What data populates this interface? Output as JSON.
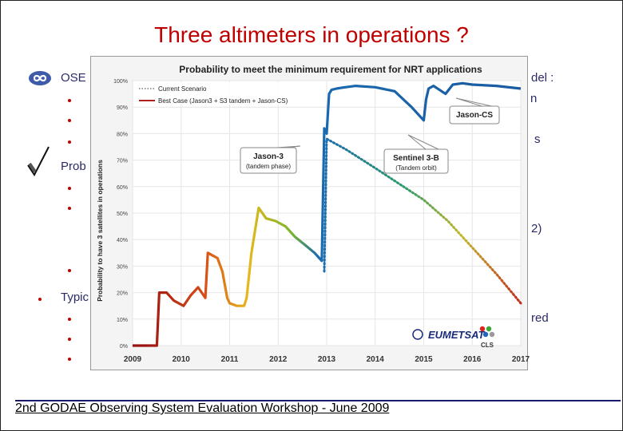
{
  "slide": {
    "title": "Three altimeters in operations ?",
    "footer": "2nd GODAE Observing System Evaluation Workshop - June 2009",
    "fragments": {
      "ose": "OSE",
      "prob": "Prob",
      "typic": "Typic",
      "del": "del :",
      "n": "n",
      "s": "s",
      "p2": "2)",
      "red": "red"
    }
  },
  "chart_data": {
    "type": "line",
    "title": "Probability to meet the minimum requirement for NRT applications",
    "ylabel": "Probability to have 3 satellites in operations",
    "ylim": [
      0,
      100
    ],
    "y_ticks": [
      "0%",
      "10%",
      "20%",
      "30%",
      "40%",
      "50%",
      "60%",
      "70%",
      "80%",
      "90%",
      "100%"
    ],
    "xlim": [
      2009,
      2017
    ],
    "x_ticks": [
      "2009",
      "2010",
      "2011",
      "2012",
      "2013",
      "2014",
      "2015",
      "2016",
      "2017"
    ],
    "legend": [
      "Current Scenario",
      "Best Case (Jason3 + S3 tandem + Jason-CS)"
    ],
    "series": [
      {
        "name": "Best Case (Jason3 + S3 tandem + Jason-CS)",
        "style": "solid",
        "x": [
          2009.0,
          2009.25,
          2009.5,
          2009.55,
          2009.7,
          2009.85,
          2010.05,
          2010.2,
          2010.35,
          2010.5,
          2010.55,
          2010.75,
          2010.85,
          2010.95,
          2011.0,
          2011.15,
          2011.3,
          2011.35,
          2011.45,
          2011.6,
          2011.75,
          2011.95,
          2012.15,
          2012.35,
          2012.55,
          2012.75,
          2012.9,
          2012.95,
          2013.0,
          2013.05,
          2013.1,
          2013.2,
          2013.35,
          2013.6,
          2014.0,
          2014.4,
          2014.75,
          2015.0,
          2015.05,
          2015.1,
          2015.2,
          2015.45,
          2015.6,
          2015.8,
          2016.0,
          2016.5,
          2017.0
        ],
        "values": [
          0,
          0,
          0,
          20,
          20,
          17,
          15,
          19,
          22,
          18,
          35,
          33,
          28,
          18,
          16,
          15,
          15,
          18,
          35,
          52,
          48,
          47,
          45,
          41,
          38,
          35,
          32,
          82,
          80,
          95,
          96.5,
          97,
          97.4,
          98,
          97.5,
          96,
          90,
          85,
          93,
          97,
          98,
          95,
          98.5,
          99,
          98.5,
          98,
          97
        ]
      },
      {
        "name": "Current Scenario",
        "style": "dotted",
        "x": [
          2012.95,
          2013.0,
          2013.4,
          2014.0,
          2014.5,
          2015.0,
          2015.5,
          2016.0,
          2016.5,
          2017.0
        ],
        "values": [
          28,
          78,
          74,
          67,
          61,
          55,
          47,
          37,
          27,
          16
        ]
      }
    ],
    "annotations": [
      "Jason-3",
      "(tandem phase)",
      "Sentinel 3-B",
      "(Tandem orbit)",
      "Jason-CS"
    ],
    "logos": [
      "EUMETSAT",
      "CLS"
    ]
  }
}
